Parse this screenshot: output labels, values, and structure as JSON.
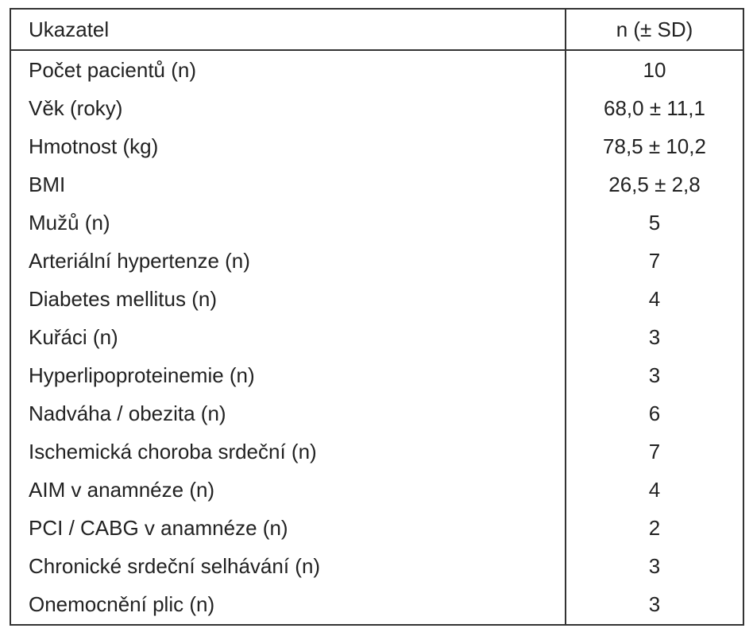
{
  "table": {
    "header": [
      "Ukazatel",
      "n (± SD)"
    ],
    "rows": [
      [
        "Počet pacientů (n)",
        "10"
      ],
      [
        "Věk (roky)",
        "68,0 ± 11,1"
      ],
      [
        "Hmotnost (kg)",
        "78,5 ± 10,2"
      ],
      [
        "BMI",
        "26,5 ± 2,8"
      ],
      [
        "Mužů (n)",
        "5"
      ],
      [
        "Arteriální hypertenze (n)",
        "7"
      ],
      [
        "Diabetes mellitus (n)",
        "4"
      ],
      [
        "Kuřáci (n)",
        "3"
      ],
      [
        "Hyperlipoproteinemie (n)",
        "3"
      ],
      [
        "Nadváha / obezita (n)",
        "6"
      ],
      [
        "Ischemická choroba srdeční (n)",
        "7"
      ],
      [
        "AIM v anamnéze (n)",
        "4"
      ],
      [
        "PCI / CABG v anamnéze (n)",
        "2"
      ],
      [
        "Chronické srdeční selhávání (n)",
        "3"
      ],
      [
        "Onemocnění plic (n)",
        "3"
      ]
    ]
  }
}
